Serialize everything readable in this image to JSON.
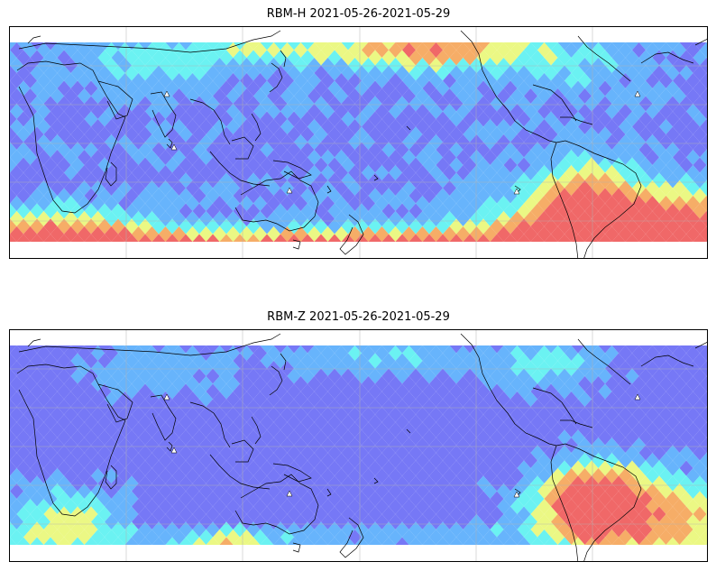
{
  "panels": [
    {
      "title": "RBM-H 2021-05-26-2021-05-29",
      "colors": {
        "low": "#6a6cf5",
        "mid_low": "#5aaefc",
        "mid": "#5ef1f1",
        "mid_high": "#e9f77a",
        "high": "#f5a65a",
        "very_high": "#ef5b5b"
      }
    },
    {
      "title": "RBM-Z 2021-05-26-2021-05-29",
      "colors": {
        "low": "#6a6cf5",
        "mid_low": "#5aaefc",
        "mid": "#5ef1f1",
        "mid_high": "#e9f77a",
        "high": "#f5a65a",
        "very_high": "#ef5b5b"
      }
    }
  ],
  "map": {
    "gridlines": "on",
    "coastlines": "on",
    "colormap": "jet"
  }
}
